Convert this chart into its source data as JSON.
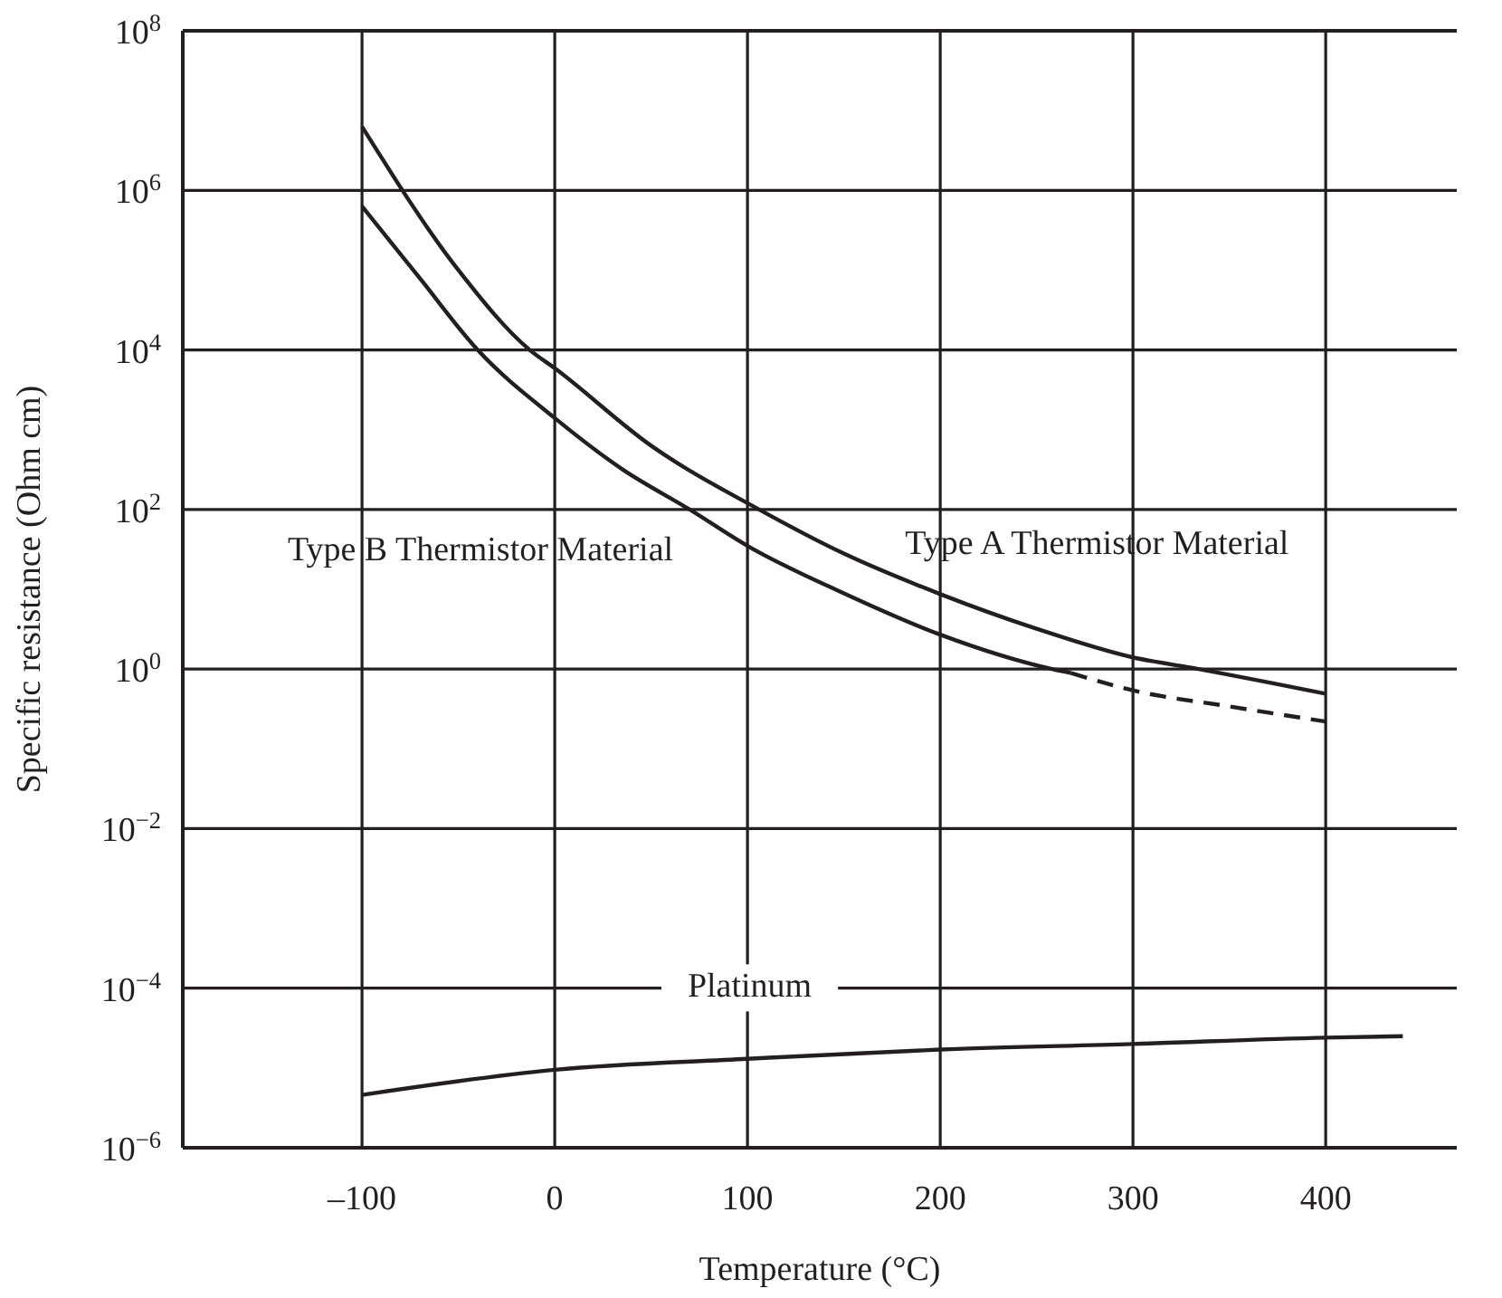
{
  "chart_data": {
    "type": "line",
    "xlabel": "Temperature (°C)",
    "ylabel": "Specific resistance (Ohm cm)",
    "log": "y",
    "grid": true,
    "marker": "none",
    "xlim": [
      -193,
      468
    ],
    "xticks": [
      {
        "value": -100,
        "label": "–100"
      },
      0,
      100,
      200,
      300,
      400
    ],
    "ylim": [
      1e-06,
      100000000.0
    ],
    "yticks": [
      {
        "value": 1e-06,
        "label": "10$^{−6}$"
      },
      {
        "value": 0.0001,
        "label": "10$^{−4}$"
      },
      {
        "value": 0.01,
        "label": "10$^{−2}$"
      },
      {
        "value": 1,
        "label": "10$^{0}$"
      },
      {
        "value": 100,
        "label": "10$^{2}$"
      },
      {
        "value": 10000.0,
        "label": "10$^{4}$"
      },
      {
        "value": 1000000.0,
        "label": "10$^{6}$"
      },
      {
        "value": 100000000.0,
        "label": "10$^{8}$"
      }
    ],
    "series": [
      {
        "name": "Type A Thermistor Material",
        "color": "#231f20",
        "line_style": "solid",
        "x": [
          -100,
          -50,
          -13,
          0,
          50,
          106,
          150,
          200,
          250,
          300,
          334,
          400
        ],
        "values": [
          6300000,
          100000,
          10000,
          5900,
          630,
          100,
          28,
          8.7,
          3.2,
          1.4,
          1,
          0.49
        ]
      },
      {
        "name": "Type B Thermistor Material",
        "color": "#231f20",
        "line_style": "solid",
        "x": [
          -100,
          -70,
          -40,
          0,
          35,
          70,
          100,
          150,
          200,
          258,
          268
        ],
        "values": [
          630000,
          79000,
          10000,
          1400,
          320,
          100,
          35,
          8.9,
          2.7,
          1,
          0.89
        ]
      },
      {
        "color": "#231f20",
        "line_style": "dashed",
        "x": [
          268,
          300,
          350,
          400
        ],
        "values": [
          0.89,
          0.54,
          0.34,
          0.22
        ]
      },
      {
        "name": "Platinum",
        "color": "#231f20",
        "line_style": "solid",
        "x": [
          -100,
          0,
          100,
          200,
          300,
          400,
          440
        ],
        "values": [
          4.6e-06,
          9.5e-06,
          1.3e-05,
          1.7e-05,
          2e-05,
          2.4e-05,
          2.5e-05
        ]
      }
    ]
  }
}
